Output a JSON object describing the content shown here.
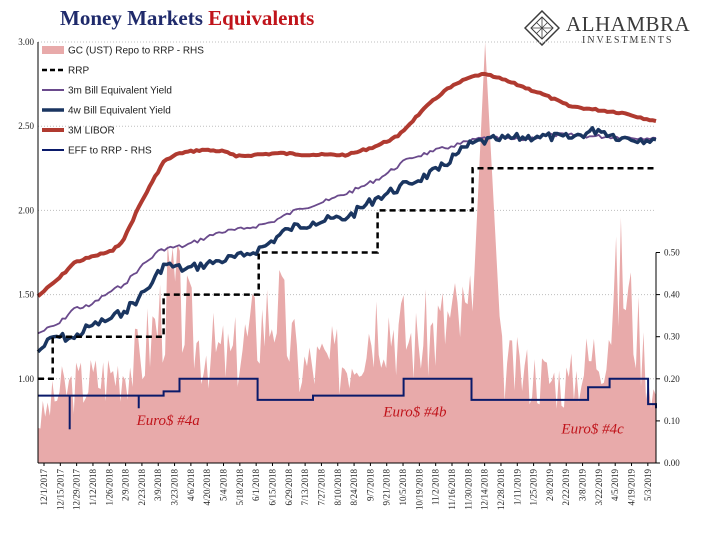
{
  "header": {
    "title_part1": "Money Markets",
    "title_part2": "Equivalents",
    "logo_name": "ALHAMBRA",
    "logo_sub": "INVESTMENTS"
  },
  "colors": {
    "gc_repo": "#e8aaaa",
    "rrp": "#000000",
    "bill3m": "#6a4a8c",
    "bill4w": "#1a3560",
    "libor": "#b03a30",
    "eff": "#0a1a6a",
    "grid": "#bfbfbf",
    "annotation": "#c0141b"
  },
  "chart_data": {
    "type": "line",
    "title": "Money Markets Equivalents",
    "left_axis": {
      "ylim": [
        0.5,
        3.0
      ],
      "ticks": [
        "3.00",
        "2.50",
        "2.00",
        "1.50",
        "1.00"
      ],
      "tick_values": [
        3.0,
        2.5,
        2.0,
        1.5,
        1.0
      ]
    },
    "right_axis": {
      "ylim": [
        0.0,
        1.0
      ],
      "ticks": [
        "0.50",
        "0.40",
        "0.30",
        "0.20",
        "0.10",
        "0.00"
      ],
      "tick_values": [
        0.5,
        0.4,
        0.3,
        0.2,
        0.1,
        0.0
      ]
    },
    "x_range": [
      "2017-12-01",
      "2019-05-31"
    ],
    "x_ticks": [
      "12/1/2017",
      "12/15/2017",
      "12/29/2017",
      "1/12/2018",
      "1/26/2018",
      "2/9/2018",
      "2/23/2018",
      "3/9/2018",
      "3/23/2018",
      "4/6/2018",
      "4/20/2018",
      "5/4/2018",
      "5/18/2018",
      "6/1/2018",
      "6/15/2018",
      "6/29/2018",
      "7/13/2018",
      "7/27/2018",
      "8/10/2018",
      "8/24/2018",
      "9/7/2018",
      "9/21/2018",
      "10/5/2018",
      "10/19/2018",
      "11/2/2018",
      "11/16/2018",
      "11/30/2018",
      "12/14/2018",
      "12/28/2018",
      "1/11/2019",
      "1/25/2019",
      "2/8/2019",
      "2/22/2019",
      "3/8/2019",
      "3/22/2019",
      "4/5/2019",
      "4/19/2019",
      "5/3/2019"
    ],
    "legend": {
      "placement": "top-left",
      "entries": [
        "GC (UST) Repo to RRP - RHS",
        "RRP",
        "3m Bill Equivalent Yield",
        "4w Bill Equivalent Yield",
        "3M LIBOR",
        "EFF to RRP - RHS"
      ]
    },
    "annotations": [
      {
        "text": "Euro$ #4a",
        "x": "2018-03-26",
        "y_right": 0.09
      },
      {
        "text": "Euro$ #4b",
        "x": "2018-10-30",
        "y_right": 0.11
      },
      {
        "text": "Euro$ #4c",
        "x": "2019-04-05",
        "y_right": 0.07
      }
    ],
    "series": [
      {
        "name": "3M LIBOR",
        "axis": "left",
        "style": "line",
        "points": [
          [
            "2017-12-01",
            1.49
          ],
          [
            "2017-12-20",
            1.6
          ],
          [
            "2018-01-02",
            1.69
          ],
          [
            "2018-01-20",
            1.73
          ],
          [
            "2018-02-05",
            1.76
          ],
          [
            "2018-02-15",
            1.83
          ],
          [
            "2018-02-28",
            2.02
          ],
          [
            "2018-03-12",
            2.17
          ],
          [
            "2018-03-22",
            2.29
          ],
          [
            "2018-04-05",
            2.34
          ],
          [
            "2018-04-25",
            2.36
          ],
          [
            "2018-05-15",
            2.35
          ],
          [
            "2018-05-25",
            2.32
          ],
          [
            "2018-06-10",
            2.33
          ],
          [
            "2018-07-01",
            2.34
          ],
          [
            "2018-08-01",
            2.33
          ],
          [
            "2018-09-01",
            2.33
          ],
          [
            "2018-09-25",
            2.38
          ],
          [
            "2018-10-15",
            2.44
          ],
          [
            "2018-11-05",
            2.59
          ],
          [
            "2018-11-25",
            2.71
          ],
          [
            "2018-12-14",
            2.78
          ],
          [
            "2018-12-28",
            2.81
          ],
          [
            "2019-01-10",
            2.79
          ],
          [
            "2019-01-31",
            2.74
          ],
          [
            "2019-02-20",
            2.69
          ],
          [
            "2019-03-15",
            2.62
          ],
          [
            "2019-04-05",
            2.6
          ],
          [
            "2019-05-01",
            2.58
          ],
          [
            "2019-05-31",
            2.53
          ]
        ]
      },
      {
        "name": "3m Bill Equivalent Yield",
        "axis": "left",
        "style": "line",
        "points": [
          [
            "2017-12-01",
            1.27
          ],
          [
            "2017-12-20",
            1.33
          ],
          [
            "2018-01-02",
            1.42
          ],
          [
            "2018-01-15",
            1.43
          ],
          [
            "2018-02-01",
            1.51
          ],
          [
            "2018-02-15",
            1.56
          ],
          [
            "2018-03-01",
            1.66
          ],
          [
            "2018-03-20",
            1.77
          ],
          [
            "2018-04-10",
            1.79
          ],
          [
            "2018-05-10",
            1.87
          ],
          [
            "2018-06-01",
            1.89
          ],
          [
            "2018-06-25",
            1.93
          ],
          [
            "2018-07-20",
            2.01
          ],
          [
            "2018-08-15",
            2.06
          ],
          [
            "2018-09-10",
            2.13
          ],
          [
            "2018-10-01",
            2.2
          ],
          [
            "2018-10-25",
            2.31
          ],
          [
            "2018-11-15",
            2.35
          ],
          [
            "2018-12-01",
            2.38
          ],
          [
            "2018-12-28",
            2.43
          ],
          [
            "2019-01-31",
            2.42
          ],
          [
            "2019-03-01",
            2.45
          ],
          [
            "2019-04-05",
            2.44
          ],
          [
            "2019-05-31",
            2.43
          ]
        ]
      },
      {
        "name": "4w Bill Equivalent Yield",
        "axis": "left",
        "style": "line",
        "points": [
          [
            "2017-12-01",
            1.16
          ],
          [
            "2017-12-15",
            1.25
          ],
          [
            "2018-01-02",
            1.24
          ],
          [
            "2018-01-15",
            1.31
          ],
          [
            "2018-02-01",
            1.35
          ],
          [
            "2018-02-15",
            1.4
          ],
          [
            "2018-02-28",
            1.48
          ],
          [
            "2018-03-12",
            1.57
          ],
          [
            "2018-03-22",
            1.68
          ],
          [
            "2018-04-10",
            1.65
          ],
          [
            "2018-05-10",
            1.7
          ],
          [
            "2018-06-01",
            1.73
          ],
          [
            "2018-06-20",
            1.79
          ],
          [
            "2018-07-10",
            1.89
          ],
          [
            "2018-08-01",
            1.93
          ],
          [
            "2018-09-01",
            1.96
          ],
          [
            "2018-09-25",
            2.07
          ],
          [
            "2018-10-25",
            2.16
          ],
          [
            "2018-11-20",
            2.24
          ],
          [
            "2018-12-05",
            2.33
          ],
          [
            "2018-12-20",
            2.4
          ],
          [
            "2019-01-10",
            2.42
          ],
          [
            "2019-02-15",
            2.44
          ],
          [
            "2019-03-15",
            2.43
          ],
          [
            "2019-04-10",
            2.48
          ],
          [
            "2019-05-01",
            2.43
          ],
          [
            "2019-05-31",
            2.42
          ]
        ]
      },
      {
        "name": "RRP",
        "axis": "left",
        "style": "step-dashed",
        "points": [
          [
            "2017-12-01",
            1.0
          ],
          [
            "2017-12-14",
            1.25
          ],
          [
            "2018-03-22",
            1.5
          ],
          [
            "2018-06-14",
            1.75
          ],
          [
            "2018-09-27",
            2.0
          ],
          [
            "2018-12-20",
            2.25
          ],
          [
            "2019-05-31",
            2.25
          ]
        ]
      },
      {
        "name": "EFF to RRP - RHS",
        "axis": "right",
        "style": "step",
        "points": [
          [
            "2017-12-01",
            0.16
          ],
          [
            "2018-03-22",
            0.17
          ],
          [
            "2018-04-05",
            0.2
          ],
          [
            "2018-06-13",
            0.15
          ],
          [
            "2018-08-01",
            0.16
          ],
          [
            "2018-10-20",
            0.2
          ],
          [
            "2018-12-19",
            0.15
          ],
          [
            "2019-04-01",
            0.18
          ],
          [
            "2019-04-20",
            0.2
          ],
          [
            "2019-05-24",
            0.14
          ],
          [
            "2019-05-31",
            0.13
          ]
        ],
        "spikes": [
          [
            "2017-12-29",
            0.08
          ],
          [
            "2018-02-28",
            0.13
          ]
        ]
      },
      {
        "name": "GC (UST) Repo to RRP - RHS",
        "axis": "right",
        "style": "area",
        "points": [
          [
            "2017-12-01",
            0.1
          ],
          [
            "2017-12-20",
            0.18
          ],
          [
            "2018-01-10",
            0.2
          ],
          [
            "2018-02-01",
            0.22
          ],
          [
            "2018-03-01",
            0.26
          ],
          [
            "2018-03-30",
            0.44
          ],
          [
            "2018-04-20",
            0.3
          ],
          [
            "2018-05-20",
            0.26
          ],
          [
            "2018-06-30",
            0.4
          ],
          [
            "2018-07-20",
            0.24
          ],
          [
            "2018-08-31",
            0.26
          ],
          [
            "2018-09-28",
            0.38
          ],
          [
            "2018-10-31",
            0.3
          ],
          [
            "2018-11-30",
            0.36
          ],
          [
            "2018-12-20",
            0.36
          ],
          [
            "2018-12-31",
            1.0
          ],
          [
            "2019-01-15",
            0.24
          ],
          [
            "2019-02-15",
            0.22
          ],
          [
            "2019-03-15",
            0.2
          ],
          [
            "2019-04-15",
            0.3
          ],
          [
            "2019-04-30",
            0.48
          ],
          [
            "2019-05-31",
            0.16
          ]
        ]
      }
    ]
  }
}
